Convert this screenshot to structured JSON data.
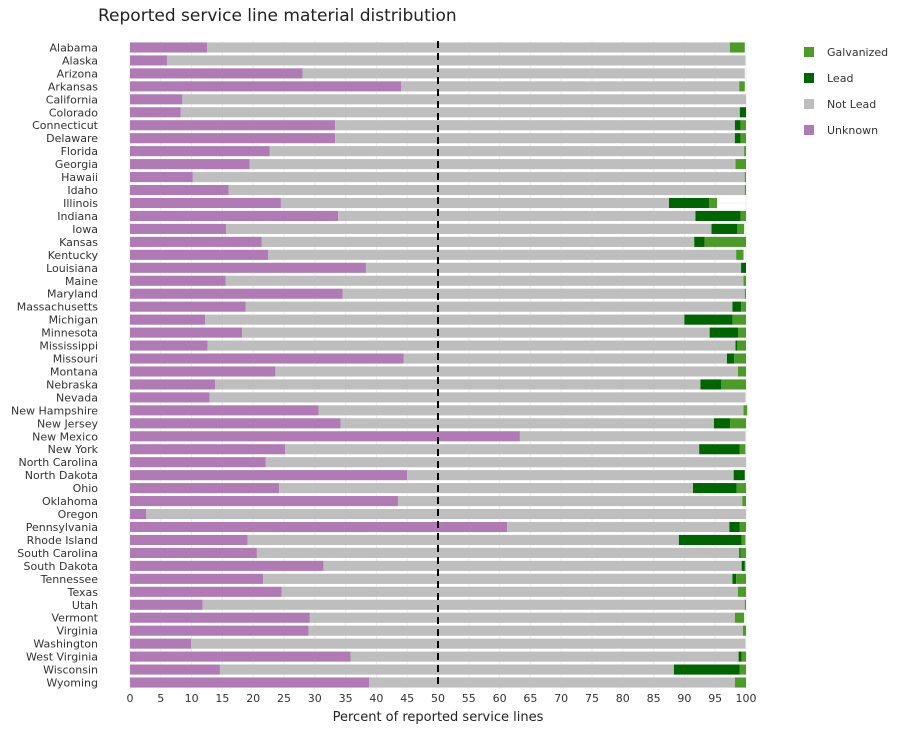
{
  "chart_data": {
    "type": "bar",
    "orientation": "horizontal",
    "stacked": true,
    "title": "Reported service line material distribution",
    "xlabel": "Percent of reported service lines",
    "ylabel": "",
    "xlim": [
      0,
      100
    ],
    "xticks": [
      "0",
      "5",
      "10",
      "15",
      "20",
      "25",
      "30",
      "35",
      "40",
      "45",
      "50",
      "55",
      "60",
      "65",
      "70",
      "75",
      "80",
      "85",
      "90",
      "95",
      "100"
    ],
    "reference_line": 50,
    "grid": true,
    "legend_position": "top-right",
    "legend_order": [
      "Galvanized",
      "Lead",
      "Not Lead",
      "Unknown"
    ],
    "categories": [
      "Alabama",
      "Alaska",
      "Arizona",
      "Arkansas",
      "California",
      "Colorado",
      "Connecticut",
      "Delaware",
      "Florida",
      "Georgia",
      "Hawaii",
      "Idaho",
      "Illinois",
      "Indiana",
      "Iowa",
      "Kansas",
      "Kentucky",
      "Louisiana",
      "Maine",
      "Maryland",
      "Massachusetts",
      "Michigan",
      "Minnesota",
      "Mississippi",
      "Missouri",
      "Montana",
      "Nebraska",
      "Nevada",
      "New Hampshire",
      "New Jersey",
      "New Mexico",
      "New York",
      "North Carolina",
      "North Dakota",
      "Ohio",
      "Oklahoma",
      "Oregon",
      "Pennsylvania",
      "Rhode Island",
      "South Carolina",
      "South Dakota",
      "Tennessee",
      "Texas",
      "Utah",
      "Vermont",
      "Virginia",
      "Washington",
      "West Virginia",
      "Wisconsin",
      "Wyoming"
    ],
    "series": [
      {
        "name": "Unknown",
        "color": "#b07ab5",
        "values": [
          12.5,
          6,
          28,
          44,
          8.5,
          8.2,
          33.3,
          33.3,
          22.7,
          19.4,
          10.2,
          16,
          24.5,
          33.8,
          15.6,
          21.4,
          22.4,
          38.3,
          15.5,
          34.5,
          18.8,
          12.2,
          18.2,
          12.6,
          44.4,
          23.6,
          13.8,
          12.9,
          30.6,
          34.2,
          63.3,
          25.2,
          22,
          45,
          24.2,
          43.5,
          2.6,
          61.2,
          19.1,
          20.6,
          31.4,
          21.6,
          24.6,
          11.8,
          29.2,
          29,
          9.9,
          35.8,
          14.6,
          38.8
        ]
      },
      {
        "name": "Not Lead",
        "color": "#bebebe",
        "values": [
          84.9,
          93.9,
          71.8,
          54.9,
          91.5,
          90.8,
          64.9,
          64.9,
          77,
          78.9,
          89.6,
          83.8,
          63,
          58,
          78.8,
          70.2,
          76,
          60.9,
          84.1,
          65.3,
          79,
          77.8,
          75.9,
          85.7,
          52.5,
          75.1,
          78.8,
          87,
          69,
          60.6,
          36.6,
          67.2,
          78,
          53,
          67.2,
          55.9,
          97.4,
          36.1,
          70,
          78.3,
          67.9,
          76.2,
          74.1,
          88,
          69,
          70.5,
          90,
          63,
          73.7,
          59.4
        ]
      },
      {
        "name": "Lead",
        "color": "#006400",
        "values": [
          0,
          0,
          0,
          0,
          0,
          1,
          0.9,
          0.9,
          0,
          0,
          0,
          0,
          6.5,
          7.3,
          4.2,
          1.7,
          0,
          0.8,
          0,
          0,
          1.4,
          7.8,
          4.6,
          0.3,
          1.2,
          0,
          3.4,
          0,
          0,
          2.6,
          0,
          6.6,
          0,
          1.8,
          7.1,
          0,
          0,
          1.7,
          10.2,
          0.2,
          0.5,
          0.6,
          0,
          0,
          0,
          0,
          0,
          0.5,
          10.7,
          0
        ]
      },
      {
        "name": "Galvanized",
        "color": "#4c9a2a",
        "values": [
          2.4,
          0,
          0,
          0.9,
          0,
          0,
          0.9,
          0.9,
          0.3,
          1.7,
          0.2,
          0.2,
          1.3,
          0.9,
          1.1,
          6.7,
          1.2,
          0,
          0.4,
          0.2,
          0.8,
          2.2,
          1.3,
          1.4,
          1.9,
          1.3,
          4,
          0,
          0.6,
          2.6,
          0,
          0.9,
          0,
          0,
          1.5,
          0.6,
          0,
          1,
          0.6,
          0.9,
          0.1,
          1.6,
          1.3,
          0.2,
          1.5,
          0.5,
          0,
          0.7,
          1,
          1.8
        ]
      }
    ]
  }
}
